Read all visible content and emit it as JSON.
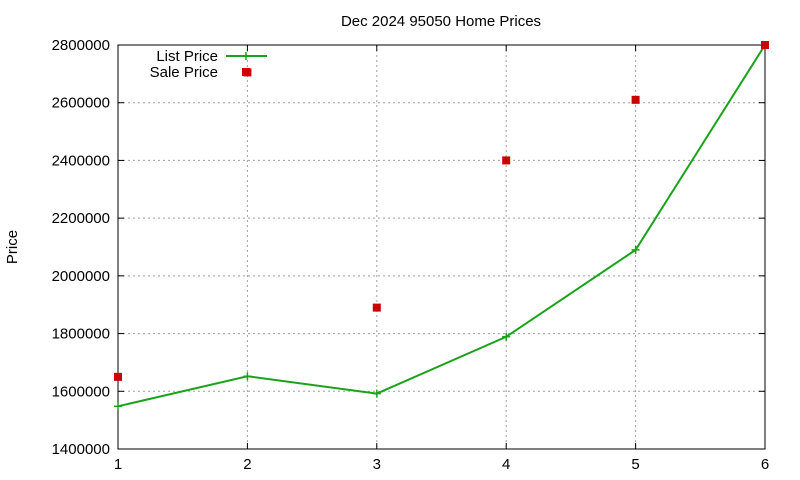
{
  "chart_data": {
    "type": "line",
    "title": "Dec 2024 95050 Home Prices",
    "xlabel": "",
    "ylabel": "Price",
    "x": [
      1,
      2,
      3,
      4,
      5,
      6
    ],
    "xlim": [
      1,
      6
    ],
    "ylim": [
      1400000,
      2800000
    ],
    "xticks": [
      "1",
      "2",
      "3",
      "4",
      "5",
      "6"
    ],
    "yticks": [
      "1400000",
      "1600000",
      "1800000",
      "2000000",
      "2200000",
      "2400000",
      "2600000",
      "2800000"
    ],
    "grid": true,
    "legend_position": "top-left",
    "series": [
      {
        "name": "List Price",
        "style": "line-with-plus-markers",
        "color": "#1aa31a",
        "values": [
          1548000,
          1652000,
          1592000,
          1789000,
          2090000,
          2800000
        ]
      },
      {
        "name": "Sale Price",
        "style": "square-markers",
        "color": "#cc0000",
        "values": [
          1650000,
          2705000,
          1890000,
          2400000,
          2610000,
          2800000
        ]
      }
    ]
  }
}
